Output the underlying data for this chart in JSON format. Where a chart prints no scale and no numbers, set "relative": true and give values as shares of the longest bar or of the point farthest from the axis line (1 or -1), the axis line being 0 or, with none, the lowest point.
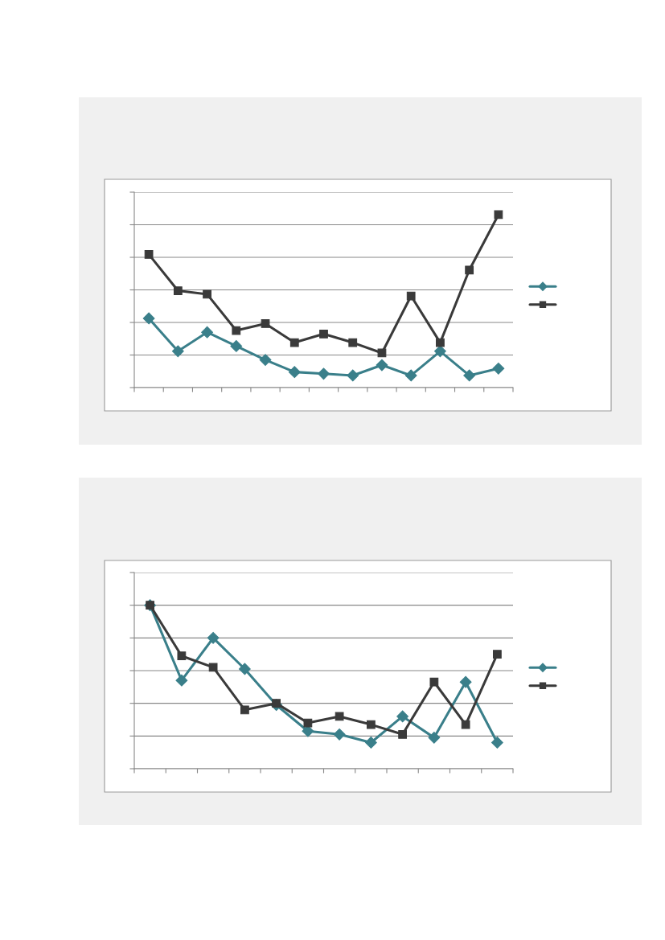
{
  "chart_data": [
    {
      "type": "line",
      "relative": true,
      "grid": "y",
      "categories": [
        null,
        null,
        null,
        null,
        null,
        null,
        null,
        null,
        null,
        null,
        null,
        null,
        null
      ],
      "series": [
        {
          "color": "#3a7f8a",
          "marker": "diamond",
          "values": [
            0.4,
            0.21,
            0.32,
            0.24,
            0.16,
            0.09,
            0.08,
            0.07,
            0.13,
            0.07,
            0.21,
            0.07,
            0.11
          ]
        },
        {
          "color": "#3a3a3a",
          "marker": "square",
          "values": [
            0.77,
            0.56,
            0.54,
            0.33,
            0.37,
            0.26,
            0.31,
            0.26,
            0.2,
            0.53,
            0.26,
            0.68,
            1.0
          ]
        }
      ]
    },
    {
      "type": "line",
      "relative": true,
      "grid": "y",
      "categories": [
        null,
        null,
        null,
        null,
        null,
        null,
        null,
        null,
        null,
        null,
        null,
        null
      ],
      "series": [
        {
          "color": "#3a7f8a",
          "marker": "diamond",
          "values": [
            1.0,
            0.54,
            0.8,
            0.61,
            0.39,
            0.23,
            0.21,
            0.16,
            0.32,
            0.19,
            0.53,
            0.16
          ]
        },
        {
          "color": "#3a3a3a",
          "marker": "square",
          "values": [
            1.0,
            0.69,
            0.62,
            0.36,
            0.4,
            0.28,
            0.32,
            0.27,
            0.21,
            0.53,
            0.27,
            0.7
          ]
        }
      ]
    }
  ]
}
